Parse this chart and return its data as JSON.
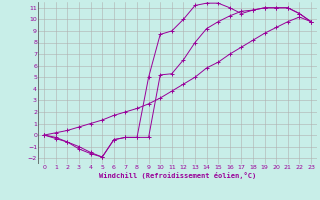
{
  "xlabel": "Windchill (Refroidissement éolien,°C)",
  "bg_color": "#c8eee8",
  "grid_color": "#b0b0b0",
  "line_color": "#990099",
  "marker": "+",
  "xlim": [
    -0.5,
    23.5
  ],
  "ylim": [
    -2.5,
    11.5
  ],
  "xticks": [
    0,
    1,
    2,
    3,
    4,
    5,
    6,
    7,
    8,
    9,
    10,
    11,
    12,
    13,
    14,
    15,
    16,
    17,
    18,
    19,
    20,
    21,
    22,
    23
  ],
  "yticks": [
    -2,
    -1,
    0,
    1,
    2,
    3,
    4,
    5,
    6,
    7,
    8,
    9,
    10,
    11
  ],
  "series": [
    {
      "x": [
        0,
        1,
        2,
        3,
        4,
        5,
        6,
        7,
        8,
        9,
        10,
        11,
        12,
        13,
        14,
        15,
        16,
        17,
        18,
        19,
        20,
        21,
        22,
        23
      ],
      "y": [
        0.0,
        -0.3,
        -0.6,
        -1.2,
        -1.6,
        -1.9,
        -0.4,
        -0.2,
        -0.2,
        5.0,
        8.7,
        9.0,
        10.0,
        11.2,
        11.4,
        11.4,
        11.0,
        10.5,
        10.8,
        11.0,
        11.0,
        11.0,
        10.5,
        9.8
      ]
    },
    {
      "x": [
        0,
        1,
        2,
        3,
        4,
        5,
        6,
        7,
        8,
        9,
        10,
        11,
        12,
        13,
        14,
        15,
        16,
        17,
        18,
        19,
        20,
        21,
        22,
        23
      ],
      "y": [
        0.0,
        -0.2,
        -0.6,
        -1.0,
        -1.5,
        -1.9,
        -0.4,
        -0.2,
        -0.2,
        -0.2,
        5.2,
        5.3,
        6.5,
        8.0,
        9.2,
        9.8,
        10.3,
        10.7,
        10.8,
        11.0,
        11.0,
        11.0,
        10.5,
        9.8
      ]
    },
    {
      "x": [
        0,
        1,
        2,
        3,
        4,
        5,
        6,
        7,
        8,
        9,
        10,
        11,
        12,
        13,
        14,
        15,
        16,
        17,
        18,
        19,
        20,
        21,
        22,
        23
      ],
      "y": [
        0.0,
        0.2,
        0.4,
        0.7,
        1.0,
        1.3,
        1.7,
        2.0,
        2.3,
        2.7,
        3.2,
        3.8,
        4.4,
        5.0,
        5.8,
        6.3,
        7.0,
        7.6,
        8.2,
        8.8,
        9.3,
        9.8,
        10.2,
        9.8
      ]
    }
  ]
}
